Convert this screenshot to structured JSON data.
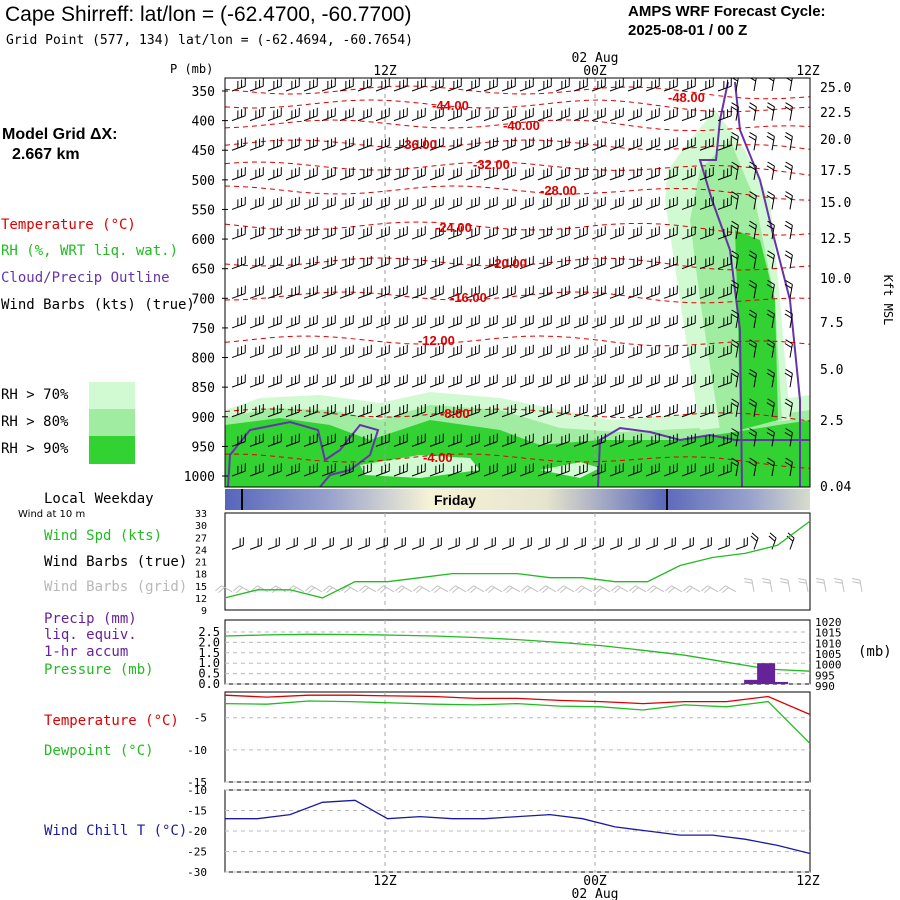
{
  "header": {
    "title": "Cape Shirreff:  lat/lon = (-62.4700, -60.7700)",
    "subtitle": "Grid Point (577, 134) lat/lon = (-62.4694, -60.7654)",
    "cycle_label": "AMPS WRF Forecast Cycle:",
    "cycle_value": "2025-08-01 / 00  Z",
    "grid_label": "Model Grid ΔX:",
    "grid_value": "2.667 km"
  },
  "legend": {
    "temperature": "Temperature (°C)",
    "rh": "RH (%, WRT liq. wat.)",
    "cloud": "Cloud/Precip Outline",
    "wind": "Wind Barbs (kts) (true)",
    "rh70": "RH > 70%",
    "rh80": "RH > 80%",
    "rh90": "RH > 90%"
  },
  "panel_labels": {
    "weekday": "Local Weekday",
    "wind10": "Wind at 10 m",
    "windspd": "Wind Spd (kts)",
    "barbs_true": "Wind Barbs (true)",
    "barbs_grid": "Wind Barbs (grid)",
    "precip1": "Precip (mm)",
    "precip2": "liq. equiv.",
    "precip3": "1-hr accum",
    "pressure": "Pressure (mb)",
    "pressure_unit": "(mb)",
    "temp": "Temperature (°C)",
    "dew": "Dewpoint (°C)",
    "chill": "Wind Chill T (°C)",
    "p_axis": "P (mb)",
    "kft": "Kft MSL",
    "day": "Friday"
  },
  "time_axis": {
    "ticks": [
      "12Z",
      "00Z",
      "12Z"
    ],
    "date_label": "02 Aug"
  },
  "colors": {
    "temp": "#dd0000",
    "rh70": "#d2fad2",
    "rh80": "#a0eca0",
    "rh90": "#32d232",
    "cloud": "#6633aa",
    "wind": "#000000",
    "pressure": "#22bb22",
    "precip": "#662299",
    "dew": "#22bb22",
    "chill": "#1a1aa0"
  },
  "chart_data": [
    {
      "type": "heatmap",
      "name": "time-height cross section",
      "y_ticks": [
        350,
        400,
        450,
        500,
        550,
        600,
        650,
        700,
        750,
        800,
        850,
        900,
        950,
        1000
      ],
      "right_ticks": [
        "25.0",
        "22.5",
        "20.0",
        "17.5",
        "15.0",
        "12.5",
        "10.0",
        "7.5",
        "5.0",
        "2.5",
        "0.04"
      ],
      "temperature_contour_labels": [
        "-48.00",
        "-44.00",
        "-40.00",
        "-36.00",
        "-32.00",
        "-28.00",
        "-24.00",
        "-20.00",
        "-16.00",
        "-12.00",
        "-8.00",
        "-4.00"
      ]
    },
    {
      "type": "line",
      "name": "10 m wind speed",
      "y_ticks": [
        33,
        30,
        27,
        24,
        21,
        18,
        15,
        12,
        9
      ],
      "x_hours": [
        0,
        2,
        4,
        6,
        8,
        10,
        12,
        14,
        16,
        18,
        20,
        22,
        24,
        26,
        28,
        30,
        32,
        34,
        36
      ],
      "values": [
        12,
        14,
        14,
        12,
        16,
        16,
        17,
        18,
        18,
        18,
        17,
        17,
        16,
        16,
        20,
        22,
        23,
        25,
        31
      ]
    },
    {
      "type": "line",
      "name": "precip and pressure",
      "y_ticks_left": [
        "2.5",
        "2.0",
        "1.5",
        "1.0",
        "0.5",
        "0.0"
      ],
      "y_ticks_right": [
        "1020",
        "1015",
        "1010",
        "1005",
        "1000",
        "995",
        "990"
      ],
      "pressure": [
        1012.5,
        1013.0,
        1013.3,
        1013.2,
        1012.9,
        1012.5,
        1011.8,
        1010.8,
        1009.5,
        1008.0,
        1005.8,
        1003.5,
        1000.2,
        997.0,
        996.0
      ],
      "precip_hours": [
        32.5,
        33.3,
        34.1
      ],
      "precip_mm": [
        0.2,
        1.0,
        0.1
      ]
    },
    {
      "type": "line",
      "name": "temperature and dewpoint",
      "y_ticks": [
        -5,
        -10,
        -15
      ],
      "temperature": [
        -1.5,
        -1.8,
        -1.5,
        -1.5,
        -1.6,
        -1.7,
        -2.0,
        -2.0,
        -2.3,
        -2.5,
        -2.8,
        -2.5,
        -2.5,
        -1.7,
        -4.5
      ],
      "dewpoint": [
        -2.8,
        -2.9,
        -2.4,
        -2.5,
        -2.7,
        -2.9,
        -3.0,
        -2.8,
        -3.2,
        -3.3,
        -3.8,
        -3.0,
        -3.3,
        -2.5,
        -9.0
      ]
    },
    {
      "type": "line",
      "name": "wind chill",
      "y_ticks": [
        -10,
        -15,
        -20,
        -25,
        -30
      ],
      "values": [
        -17,
        -17,
        -16,
        -13,
        -12.5,
        -17,
        -16.5,
        -17,
        -17,
        -16.5,
        -16,
        -17,
        -19,
        -20,
        -21,
        -21,
        -22,
        -23.5,
        -25.5
      ]
    }
  ]
}
